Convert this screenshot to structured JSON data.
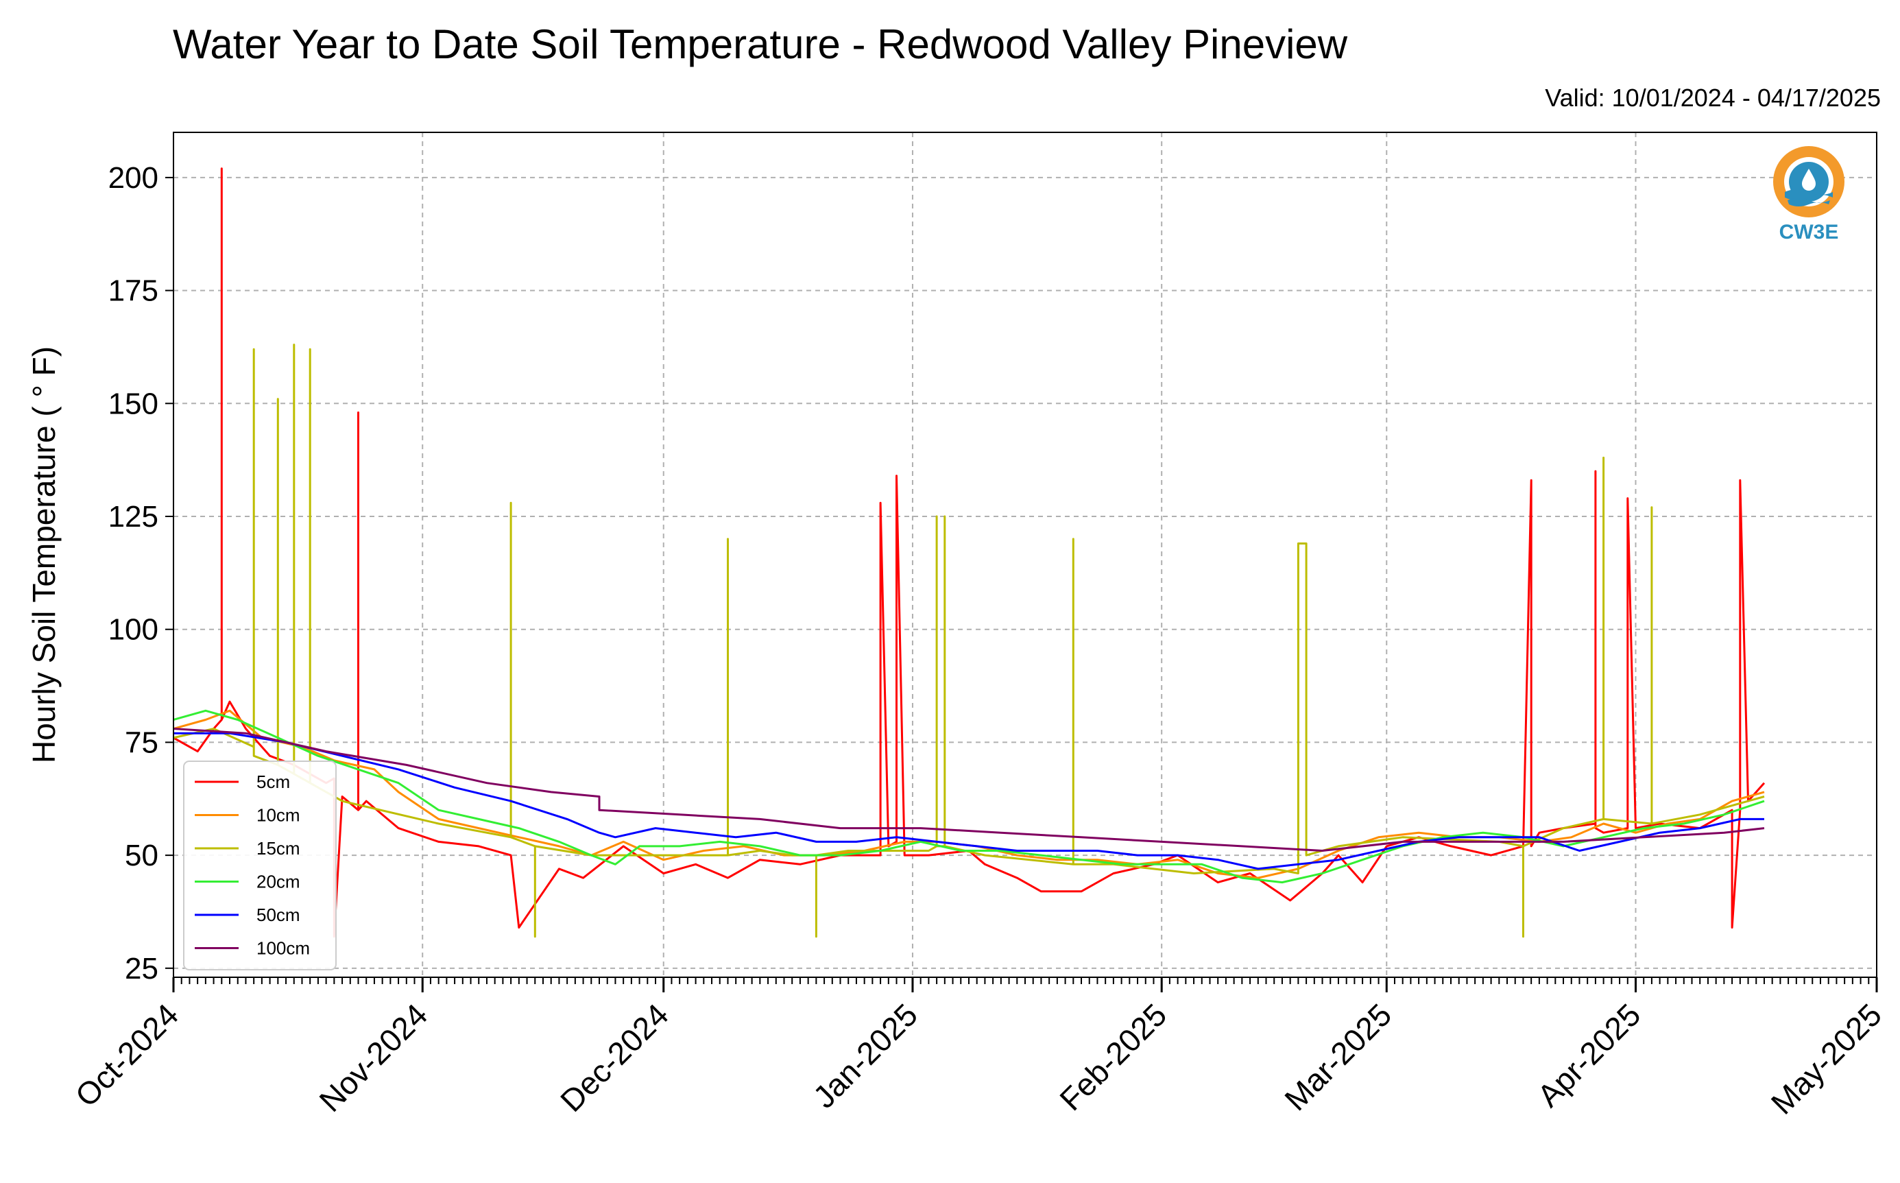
{
  "title": "Water Year to Date Soil Temperature - Redwood Valley Pineview",
  "valid": "Valid: 10/01/2024 - 04/17/2025",
  "logo_text": "CW3E",
  "chart_data": {
    "type": "line",
    "title": "Water Year to Date Soil Temperature - Redwood Valley Pineview",
    "xlabel": "",
    "ylabel": "Hourly Soil Temperature ( ° F)",
    "ylim": [
      23,
      210
    ],
    "xlim": [
      "2024-10-01",
      "2025-05-01"
    ],
    "grid": true,
    "legend_position": "lower-left",
    "x_ticks": [
      "2024-10-01",
      "2024-11-01",
      "2024-12-01",
      "2025-01-01",
      "2025-02-01",
      "2025-03-01",
      "2025-04-01",
      "2025-05-01"
    ],
    "x_tick_labels": [
      "Oct-2024",
      "Nov-2024",
      "Dec-2024",
      "Jan-2025",
      "Feb-2025",
      "Mar-2025",
      "Apr-2025",
      "May-2025"
    ],
    "y_ticks": [
      25,
      50,
      75,
      100,
      125,
      150,
      175,
      200
    ],
    "series": [
      {
        "name": "5cm",
        "color": "#ff0000",
        "x": [
          "2024-10-01",
          "2024-10-04",
          "2024-10-06",
          "2024-10-07",
          "2024-10-07",
          "2024-10-07",
          "2024-10-08",
          "2024-10-10",
          "2024-10-13",
          "2024-10-16",
          "2024-10-20",
          "2024-10-21",
          "2024-10-21",
          "2024-10-22",
          "2024-10-24",
          "2024-10-24",
          "2024-10-24",
          "2024-10-25",
          "2024-10-29",
          "2024-11-03",
          "2024-11-08",
          "2024-11-12",
          "2024-11-13",
          "2024-11-18",
          "2024-11-21",
          "2024-11-26",
          "2024-12-01",
          "2024-12-05",
          "2024-12-09",
          "2024-12-13",
          "2024-12-18",
          "2024-12-23",
          "2024-12-28",
          "2024-12-28",
          "2024-12-29",
          "2024-12-30",
          "2024-12-30",
          "2024-12-31",
          "2025-01-03",
          "2025-01-08",
          "2025-01-10",
          "2025-01-14",
          "2025-01-17",
          "2025-01-22",
          "2025-01-26",
          "2025-01-31",
          "2025-02-03",
          "2025-02-08",
          "2025-02-12",
          "2025-02-17",
          "2025-02-21",
          "2025-02-23",
          "2025-02-26",
          "2025-03-01",
          "2025-03-05",
          "2025-03-09",
          "2025-03-14",
          "2025-03-18",
          "2025-03-19",
          "2025-03-19",
          "2025-03-20",
          "2025-03-23",
          "2025-03-27",
          "2025-03-27",
          "2025-03-27",
          "2025-03-28",
          "2025-03-31",
          "2025-03-31",
          "2025-04-01",
          "2025-04-04",
          "2025-04-09",
          "2025-04-13",
          "2025-04-13",
          "2025-04-14",
          "2025-04-14",
          "2025-04-14",
          "2025-04-15",
          "2025-04-17"
        ],
        "y": [
          76,
          73,
          78,
          80,
          202,
          80,
          84,
          78,
          72,
          70,
          66,
          67,
          32,
          63,
          60,
          148,
          60,
          62,
          56,
          53,
          52,
          50,
          34,
          47,
          45,
          52,
          46,
          48,
          45,
          49,
          48,
          50,
          50,
          128,
          52,
          53,
          134,
          50,
          50,
          51,
          48,
          45,
          42,
          42,
          46,
          48,
          50,
          44,
          46,
          40,
          46,
          50,
          44,
          52,
          54,
          52,
          50,
          52,
          133,
          52,
          55,
          56,
          57,
          135,
          56,
          55,
          56,
          129,
          56,
          57,
          56,
          60,
          34,
          60,
          62,
          133,
          62,
          66
        ]
      },
      {
        "name": "10cm",
        "color": "#ff8c00",
        "x": [
          "2024-10-01",
          "2024-10-05",
          "2024-10-08",
          "2024-10-12",
          "2024-10-17",
          "2024-10-21",
          "2024-10-26",
          "2024-10-29",
          "2024-11-03",
          "2024-11-08",
          "2024-11-13",
          "2024-11-18",
          "2024-11-22",
          "2024-11-26",
          "2024-12-01",
          "2024-12-06",
          "2024-12-11",
          "2024-12-16",
          "2024-12-21",
          "2024-12-26",
          "2024-12-31",
          "2025-01-04",
          "2025-01-09",
          "2025-01-14",
          "2025-01-19",
          "2025-01-24",
          "2025-01-29",
          "2025-02-03",
          "2025-02-08",
          "2025-02-13",
          "2025-02-18",
          "2025-02-23",
          "2025-02-28",
          "2025-03-05",
          "2025-03-10",
          "2025-03-15",
          "2025-03-20",
          "2025-03-24",
          "2025-03-28",
          "2025-04-01",
          "2025-04-05",
          "2025-04-09",
          "2025-04-13",
          "2025-04-17"
        ],
        "y": [
          78,
          80,
          82,
          76,
          74,
          71,
          69,
          64,
          58,
          56,
          54,
          52,
          50,
          53,
          49,
          51,
          52,
          50,
          50,
          51,
          53,
          53,
          52,
          50,
          49,
          49,
          48,
          49,
          46,
          45,
          47,
          51,
          54,
          55,
          54,
          54,
          53,
          54,
          57,
          55,
          57,
          58,
          62,
          64
        ]
      },
      {
        "name": "15cm",
        "color": "#bdbd00",
        "x": [
          "2024-10-01",
          "2024-10-06",
          "2024-10-11",
          "2024-10-11",
          "2024-10-11",
          "2024-10-14",
          "2024-10-14",
          "2024-10-14",
          "2024-10-16",
          "2024-10-16",
          "2024-10-16",
          "2024-10-18",
          "2024-10-18",
          "2024-10-18",
          "2024-10-22",
          "2024-11-03",
          "2024-11-12",
          "2024-11-12",
          "2024-11-12",
          "2024-11-15",
          "2024-11-15",
          "2024-11-15",
          "2024-11-22",
          "2024-12-02",
          "2024-12-09",
          "2024-12-09",
          "2024-12-09",
          "2024-12-13",
          "2024-12-17",
          "2024-12-20",
          "2024-12-20",
          "2024-12-20",
          "2024-12-24",
          "2025-01-03",
          "2025-01-04",
          "2025-01-04",
          "2025-01-04",
          "2025-01-05",
          "2025-01-05",
          "2025-01-05",
          "2025-01-10",
          "2025-01-21",
          "2025-01-21",
          "2025-01-21",
          "2025-01-26",
          "2025-02-05",
          "2025-02-15",
          "2025-02-18",
          "2025-02-18",
          "2025-02-19",
          "2025-02-19",
          "2025-02-23",
          "2025-03-03",
          "2025-03-15",
          "2025-03-18",
          "2025-03-18",
          "2025-03-18",
          "2025-03-23",
          "2025-03-28",
          "2025-03-28",
          "2025-03-28",
          "2025-04-03",
          "2025-04-03",
          "2025-04-03",
          "2025-04-09",
          "2025-04-17"
        ],
        "y": [
          76,
          78,
          74,
          162,
          72,
          70,
          151,
          70,
          68,
          163,
          68,
          66,
          162,
          66,
          62,
          57,
          54,
          128,
          54,
          52,
          32,
          52,
          50,
          50,
          50,
          120,
          50,
          51,
          50,
          50,
          32,
          50,
          51,
          51,
          52,
          125,
          52,
          52,
          125,
          52,
          50,
          48,
          120,
          48,
          48,
          46,
          47,
          46,
          119,
          119,
          50,
          52,
          54,
          53,
          52,
          32,
          52,
          56,
          58,
          138,
          58,
          57,
          127,
          57,
          59,
          63
        ]
      },
      {
        "name": "20cm",
        "color": "#33ee33",
        "x": [
          "2024-10-01",
          "2024-10-05",
          "2024-10-09",
          "2024-10-14",
          "2024-10-19",
          "2024-10-24",
          "2024-10-29",
          "2024-11-03",
          "2024-11-08",
          "2024-11-13",
          "2024-11-18",
          "2024-11-22",
          "2024-11-25",
          "2024-11-28",
          "2024-12-03",
          "2024-12-08",
          "2024-12-13",
          "2024-12-18",
          "2024-12-23",
          "2024-12-28",
          "2025-01-02",
          "2025-01-07",
          "2025-01-12",
          "2025-01-17",
          "2025-01-22",
          "2025-01-27",
          "2025-02-01",
          "2025-02-06",
          "2025-02-11",
          "2025-02-16",
          "2025-02-21",
          "2025-02-26",
          "2025-03-03",
          "2025-03-08",
          "2025-03-13",
          "2025-03-18",
          "2025-03-23",
          "2025-03-28",
          "2025-04-02",
          "2025-04-07",
          "2025-04-12",
          "2025-04-17"
        ],
        "y": [
          80,
          82,
          80,
          76,
          72,
          69,
          66,
          60,
          58,
          56,
          53,
          50,
          48,
          52,
          52,
          53,
          52,
          50,
          50,
          51,
          53,
          51,
          51,
          50,
          49,
          48,
          48,
          48,
          45,
          44,
          46,
          49,
          52,
          54,
          55,
          54,
          52,
          54,
          56,
          57,
          59,
          62
        ]
      },
      {
        "name": "50cm",
        "color": "#0000ff",
        "x": [
          "2024-10-01",
          "2024-10-08",
          "2024-10-15",
          "2024-10-22",
          "2024-10-29",
          "2024-11-05",
          "2024-11-12",
          "2024-11-19",
          "2024-11-23",
          "2024-11-25",
          "2024-11-30",
          "2024-12-05",
          "2024-12-10",
          "2024-12-15",
          "2024-12-20",
          "2024-12-25",
          "2024-12-30",
          "2025-01-04",
          "2025-01-09",
          "2025-01-14",
          "2025-01-19",
          "2025-01-24",
          "2025-01-29",
          "2025-02-03",
          "2025-02-08",
          "2025-02-13",
          "2025-02-18",
          "2025-02-23",
          "2025-02-28",
          "2025-03-05",
          "2025-03-10",
          "2025-03-15",
          "2025-03-20",
          "2025-03-25",
          "2025-03-30",
          "2025-04-04",
          "2025-04-09",
          "2025-04-14",
          "2025-04-17"
        ],
        "y": [
          77,
          77,
          75,
          72,
          69,
          65,
          62,
          58,
          55,
          54,
          56,
          55,
          54,
          55,
          53,
          53,
          54,
          53,
          52,
          51,
          51,
          51,
          50,
          50,
          49,
          47,
          48,
          49,
          51,
          53,
          54,
          54,
          54,
          51,
          53,
          55,
          56,
          58,
          58
        ]
      },
      {
        "name": "100cm",
        "color": "#800060",
        "x": [
          "2024-10-01",
          "2024-10-10",
          "2024-10-20",
          "2024-10-30",
          "2024-11-09",
          "2024-11-17",
          "2024-11-23",
          "2024-11-23",
          "2024-12-03",
          "2024-12-13",
          "2024-12-23",
          "2025-01-02",
          "2025-01-12",
          "2025-01-22",
          "2025-02-01",
          "2025-02-11",
          "2025-02-21",
          "2025-03-03",
          "2025-03-13",
          "2025-03-23",
          "2025-04-02",
          "2025-04-12",
          "2025-04-17"
        ],
        "y": [
          78,
          77,
          73,
          70,
          66,
          64,
          63,
          60,
          59,
          58,
          56,
          56,
          55,
          54,
          53,
          52,
          51,
          53,
          53,
          53,
          54,
          55,
          56
        ]
      }
    ]
  }
}
